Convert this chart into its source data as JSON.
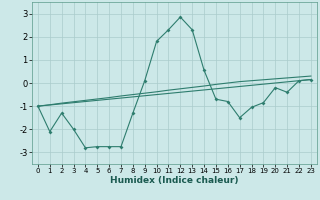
{
  "xlabel": "Humidex (Indice chaleur)",
  "background_color": "#cce8e8",
  "grid_color": "#aacccc",
  "line_color": "#2e7d6e",
  "xlim": [
    -0.5,
    23.5
  ],
  "ylim": [
    -3.5,
    3.5
  ],
  "yticks": [
    -3,
    -2,
    -1,
    0,
    1,
    2,
    3
  ],
  "xticks": [
    0,
    1,
    2,
    3,
    4,
    5,
    6,
    7,
    8,
    9,
    10,
    11,
    12,
    13,
    14,
    15,
    16,
    17,
    18,
    19,
    20,
    21,
    22,
    23
  ],
  "series1_x": [
    0,
    1,
    2,
    3,
    4,
    5,
    6,
    7,
    8,
    9,
    10,
    11,
    12,
    13,
    14,
    15,
    16,
    17,
    18,
    19,
    20,
    21,
    22,
    23
  ],
  "series1_y": [
    -1.0,
    -2.1,
    -1.3,
    -2.0,
    -2.8,
    -2.75,
    -2.75,
    -2.75,
    -1.3,
    0.1,
    1.8,
    2.3,
    2.85,
    2.3,
    0.55,
    -0.7,
    -0.8,
    -1.5,
    -1.05,
    -0.85,
    -0.2,
    -0.4,
    0.1,
    0.15
  ],
  "series2_x": [
    0,
    23
  ],
  "series2_y": [
    -1.0,
    0.15
  ],
  "series3_x": [
    0,
    1,
    2,
    3,
    4,
    5,
    6,
    7,
    8,
    9,
    10,
    11,
    12,
    13,
    14,
    15,
    16,
    17,
    18,
    19,
    20,
    21,
    22,
    23
  ],
  "series3_y": [
    -1.0,
    -0.94,
    -0.87,
    -0.81,
    -0.75,
    -0.69,
    -0.63,
    -0.56,
    -0.5,
    -0.44,
    -0.38,
    -0.31,
    -0.25,
    -0.19,
    -0.13,
    -0.06,
    0.0,
    0.06,
    0.1,
    0.14,
    0.18,
    0.22,
    0.26,
    0.3
  ]
}
